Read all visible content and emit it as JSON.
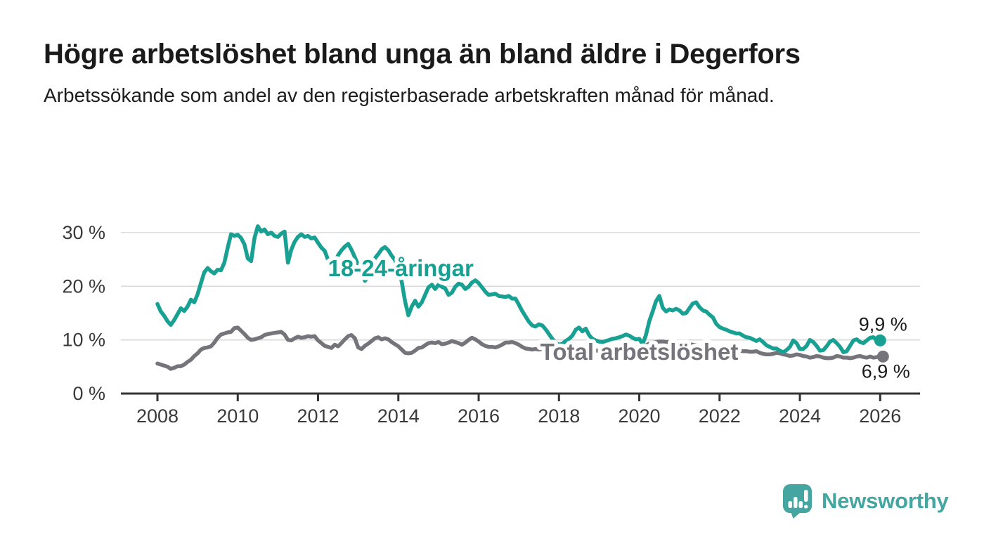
{
  "header": {
    "title": "Högre arbetslöshet bland unga än bland äldre i Degerfors",
    "subtitle": "Arbetssökande som andel av den registerbaserade arbetskraften månad för månad."
  },
  "footer": {
    "brand": "Newsworthy",
    "logo_icon": "speech-bubble-with-bar-chart-icon"
  },
  "colors": {
    "young_series": "#18a093",
    "total_series": "#75747b",
    "axis_text": "#3a3a3a",
    "axis_line": "#333333",
    "gridline": "#d9d9d9",
    "title_text": "#1a1a1a",
    "end_label_text": "#1a1a1a",
    "logo_teal": "#45a5a0",
    "label_halo": "#ffffff"
  },
  "chart_data": {
    "type": "line",
    "x_unit": "month",
    "x_start": "2008-01",
    "x_end": "2026-01",
    "x_tick_years": [
      2008,
      2010,
      2012,
      2014,
      2016,
      2018,
      2020,
      2022,
      2024,
      2026
    ],
    "y_ticks": [
      {
        "value": 0,
        "label": "0 %"
      },
      {
        "value": 10,
        "label": "10 %"
      },
      {
        "value": 20,
        "label": "20 %"
      },
      {
        "value": 30,
        "label": "30 %"
      }
    ],
    "ylim": [
      0,
      32
    ],
    "grid": "horizontal",
    "legend_position": "inline-labels",
    "series": [
      {
        "name": "18-24-åringar",
        "color": "#18a093",
        "end_label": "9,9 %",
        "end_value": 9.9,
        "label_anchor": {
          "year": 2014.06,
          "value": 21.9
        },
        "values": [
          16.7,
          15.3,
          14.5,
          13.5,
          12.8,
          13.7,
          14.8,
          15.9,
          15.4,
          16.2,
          17.5,
          17.0,
          18.5,
          20.6,
          22.6,
          23.4,
          22.8,
          22.4,
          23.1,
          23.0,
          24.4,
          27.2,
          29.7,
          29.4,
          29.6,
          29.0,
          27.8,
          25.2,
          24.7,
          29.0,
          31.2,
          30.2,
          30.6,
          29.7,
          30.0,
          29.4,
          29.2,
          29.8,
          30.2,
          24.4,
          26.8,
          28.3,
          29.2,
          29.7,
          29.2,
          29.4,
          28.9,
          29.1,
          28.1,
          27.2,
          26.6,
          24.9,
          23.4,
          24.6,
          25.8,
          26.7,
          27.4,
          27.9,
          26.8,
          25.4,
          24.0,
          22.3,
          21.0,
          21.8,
          23.7,
          25.2,
          26.0,
          26.9,
          27.3,
          26.7,
          25.7,
          24.9,
          22.6,
          20.9,
          17.2,
          14.6,
          16.2,
          17.3,
          16.2,
          17.0,
          18.4,
          19.8,
          20.3,
          19.5,
          20.3,
          19.9,
          19.6,
          18.4,
          18.8,
          19.9,
          20.5,
          20.3,
          19.5,
          19.9,
          20.7,
          21.1,
          20.6,
          19.8,
          19.0,
          18.4,
          18.5,
          18.6,
          18.2,
          18.1,
          18.0,
          18.2,
          17.7,
          17.7,
          16.6,
          15.4,
          14.4,
          13.4,
          12.7,
          12.5,
          12.9,
          12.7,
          12.0,
          11.1,
          10.2,
          9.5,
          9.1,
          9.3,
          9.8,
          10.2,
          10.8,
          11.9,
          12.3,
          11.6,
          12.1,
          10.9,
          10.2,
          9.9,
          9.7,
          9.6,
          9.8,
          10.0,
          10.2,
          10.3,
          10.5,
          10.7,
          11.0,
          10.8,
          10.4,
          10.1,
          10.2,
          9.2,
          10.9,
          13.5,
          15.3,
          17.2,
          18.2,
          16.0,
          15.3,
          15.7,
          15.5,
          15.8,
          15.5,
          14.9,
          15.0,
          15.9,
          16.8,
          17.0,
          16.1,
          15.5,
          15.3,
          14.7,
          14.2,
          13.0,
          12.4,
          12.1,
          11.9,
          11.6,
          11.4,
          11.2,
          11.2,
          10.8,
          10.5,
          10.4,
          10.1,
          9.8,
          10.1,
          9.6,
          9.0,
          8.7,
          8.4,
          8.4,
          8.0,
          7.7,
          8.1,
          8.7,
          9.9,
          9.4,
          8.3,
          8.3,
          8.9,
          10.0,
          9.6,
          8.9,
          8.0,
          8.1,
          8.8,
          9.7,
          10.0,
          9.4,
          8.7,
          7.7,
          7.9,
          8.9,
          9.9,
          10.1,
          9.6,
          9.4,
          9.9,
          10.4,
          10.5,
          9.9,
          9.9
        ]
      },
      {
        "name": "Total arbetslöshet",
        "color": "#75747b",
        "end_label": "6,9 %",
        "end_value": 6.9,
        "label_anchor": {
          "year": 2020.0,
          "value": 6.3
        },
        "values": [
          5.6,
          5.4,
          5.2,
          5.0,
          4.6,
          4.8,
          5.1,
          5.1,
          5.4,
          5.9,
          6.3,
          7.0,
          7.5,
          8.2,
          8.5,
          8.6,
          8.8,
          9.5,
          10.4,
          11.0,
          11.2,
          11.4,
          11.5,
          12.2,
          12.3,
          11.7,
          11.1,
          10.4,
          10.0,
          10.1,
          10.3,
          10.5,
          10.9,
          11.1,
          11.2,
          11.3,
          11.4,
          11.5,
          11.0,
          10.0,
          9.9,
          10.3,
          10.6,
          10.4,
          10.5,
          10.7,
          10.6,
          10.7,
          9.9,
          9.4,
          8.9,
          8.7,
          8.5,
          9.1,
          8.8,
          9.4,
          10.1,
          10.7,
          10.9,
          10.3,
          8.6,
          8.3,
          8.9,
          9.3,
          9.8,
          10.3,
          10.5,
          10.1,
          10.3,
          10.1,
          9.6,
          9.2,
          8.8,
          8.2,
          7.6,
          7.5,
          7.6,
          8.0,
          8.5,
          8.6,
          9.0,
          9.4,
          9.5,
          9.4,
          9.6,
          9.2,
          9.3,
          9.5,
          9.8,
          9.6,
          9.4,
          9.1,
          9.5,
          10.0,
          10.4,
          10.1,
          9.7,
          9.2,
          8.9,
          8.7,
          8.7,
          8.6,
          8.8,
          9.1,
          9.5,
          9.5,
          9.6,
          9.4,
          9.1,
          8.7,
          8.4,
          8.3,
          8.2,
          8.3,
          8.2,
          8.3,
          8.2,
          8.1,
          8.0,
          8.0,
          7.9,
          7.8,
          7.8,
          7.7,
          7.7,
          7.6,
          7.6,
          7.7,
          7.8,
          7.8,
          7.9,
          8.0,
          8.0,
          8.1,
          8.1,
          8.2,
          8.2,
          8.3,
          8.3,
          8.4,
          8.5,
          8.5,
          8.6,
          8.6,
          8.7,
          8.8,
          9.0,
          9.3,
          9.5,
          9.6,
          9.7,
          9.7,
          9.6,
          9.6,
          9.5,
          9.5,
          9.4,
          9.4,
          9.3,
          9.2,
          9.1,
          9.0,
          8.9,
          8.8,
          8.7,
          8.6,
          8.5,
          8.4,
          8.4,
          8.3,
          8.2,
          8.1,
          8.1,
          8.0,
          8.0,
          7.9,
          7.9,
          7.8,
          7.8,
          7.9,
          7.6,
          7.4,
          7.3,
          7.3,
          7.4,
          7.6,
          7.5,
          7.3,
          7.2,
          7.0,
          7.1,
          7.3,
          7.2,
          7.0,
          6.9,
          6.7,
          6.8,
          7.0,
          6.9,
          6.7,
          6.6,
          6.6,
          6.7,
          7.0,
          6.9,
          6.7,
          6.7,
          6.6,
          6.7,
          6.9,
          7.0,
          6.8,
          6.7,
          6.9,
          6.7,
          6.8,
          6.9
        ]
      }
    ]
  }
}
